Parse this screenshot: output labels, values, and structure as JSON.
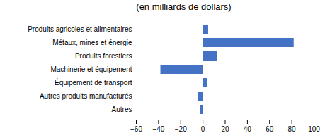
{
  "chart_data": {
    "type": "bar",
    "orientation": "horizontal",
    "title": "(en milliards de dollars)",
    "categories": [
      "Produits agricoles et alimentaires",
      "Métaux, mines et énergie",
      "Produits forestiers",
      "Machinerie et équipement",
      "Équipement de transport",
      "Autres produits manufacturés",
      "Autres"
    ],
    "values": [
      5,
      82,
      13,
      -38,
      4,
      -4,
      -2
    ],
    "color": "#4472C4",
    "xlim": [
      -60,
      100
    ],
    "xticks": [
      -60,
      -40,
      -20,
      0,
      20,
      40,
      60,
      80,
      100
    ],
    "grid": false
  }
}
